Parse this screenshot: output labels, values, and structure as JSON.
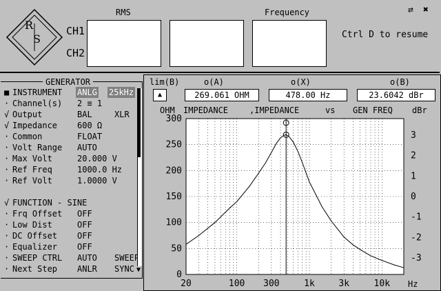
{
  "top": {
    "logo_text_r": "R",
    "logo_text_s": "S",
    "ch1_label": "CH1",
    "ch2_label": "CH2",
    "rms_label": "RMS",
    "frequency_label": "Frequency",
    "resume_hint": "Ctrl D to resume",
    "icons": [
      "double-arrow-icon",
      "close-x-icon"
    ]
  },
  "generator": {
    "title": "GENERATOR",
    "rows": [
      {
        "mark": "■",
        "name": "INSTRUMENT",
        "value": "ANLG",
        "value2": "25kHz",
        "highlight": true
      },
      {
        "mark": "·",
        "name": "Channel(s)",
        "value": "2 ≡ 1",
        "value2": ""
      },
      {
        "mark": "√",
        "name": "Output",
        "value": "BAL",
        "value2": "XLR"
      },
      {
        "mark": "√",
        "name": "Impedance",
        "value": "600 Ω",
        "value2": ""
      },
      {
        "mark": "·",
        "name": "Common",
        "value": "FLOAT",
        "value2": ""
      },
      {
        "mark": "·",
        "name": "Volt Range",
        "value": "AUTO",
        "value2": ""
      },
      {
        "mark": "·",
        "name": "Max Volt",
        "value": "20.000 V",
        "value2": ""
      },
      {
        "mark": "·",
        "name": "Ref Freq",
        "value": "1000.0 Hz",
        "value2": ""
      },
      {
        "mark": "·",
        "name": "Ref Volt",
        "value": "1.0000 V",
        "value2": ""
      },
      {
        "mark": "",
        "name": "",
        "value": "",
        "value2": ""
      },
      {
        "mark": "√",
        "name": "FUNCTION - SINE",
        "value": "",
        "value2": ""
      },
      {
        "mark": "·",
        "name": "Frq Offset",
        "value": "OFF",
        "value2": ""
      },
      {
        "mark": "·",
        "name": "Low Dist",
        "value": "OFF",
        "value2": ""
      },
      {
        "mark": "·",
        "name": "DC Offset",
        "value": "OFF",
        "value2": ""
      },
      {
        "mark": "·",
        "name": "Equalizer",
        "value": "OFF",
        "value2": ""
      },
      {
        "mark": "·",
        "name": "SWEEP CTRL",
        "value": "AUTO",
        "value2": "SWEEP"
      },
      {
        "mark": "·",
        "name": "Next Step",
        "value": "ANLR",
        "value2": "SYNC"
      }
    ],
    "scroll_down_icon": "▼"
  },
  "graph": {
    "lim_label": "lim(B)",
    "lim_button": "▲",
    "oA_label": "o(A)",
    "oX_label": "o(X)",
    "oB_label": "o(B)",
    "oA_value": "269.061 OHM",
    "oX_value": "478.00  Hz",
    "oB_value": "23.6042 dBr",
    "y_left_unit": "OHM",
    "title_left": "IMPEDANCE",
    "title_mid": ",IMPEDANCE",
    "title_vs": "vs",
    "title_right": "GEN FREQ",
    "y_right_unit": "dBr",
    "x_unit": "Hz",
    "cursor_marker": "⊕"
  },
  "chart_data": {
    "type": "line",
    "xlabel": "Hz",
    "ylabel": "OHM",
    "y2label": "dBr",
    "x_scale": "log",
    "xlim": [
      20,
      20000
    ],
    "ylim": [
      0,
      300
    ],
    "y2lim": [
      -3.8,
      3.8
    ],
    "x_ticks": [
      20,
      100,
      300,
      1000,
      3000,
      10000
    ],
    "x_tick_labels": [
      "20",
      "100",
      "300",
      "1k",
      "3k",
      "10k"
    ],
    "y_ticks": [
      0,
      50,
      100,
      150,
      200,
      250,
      300
    ],
    "y_tick_labels": [
      "0",
      "50",
      "100",
      "150",
      "200",
      "250",
      "300"
    ],
    "y2_ticks": [
      3,
      2,
      1,
      0,
      -1,
      -2,
      -3
    ],
    "y2_tick_labels": [
      "3",
      "2",
      "1",
      "0",
      "-1",
      "-2",
      "-3"
    ],
    "grid": true,
    "series": [
      {
        "x": [
          20,
          30,
          50,
          80,
          100,
          150,
          200,
          250,
          300,
          350,
          400,
          450,
          478,
          520,
          600,
          700,
          800,
          1000,
          1500,
          2000,
          3000,
          4000,
          5000,
          7000,
          10000,
          15000,
          20000
        ],
        "y": [
          58,
          75,
          100,
          128,
          140,
          170,
          195,
          215,
          235,
          252,
          263,
          268,
          269,
          266,
          255,
          236,
          215,
          178,
          130,
          103,
          72,
          57,
          48,
          36,
          27,
          18,
          13
        ]
      }
    ],
    "cursor_x": 478
  }
}
